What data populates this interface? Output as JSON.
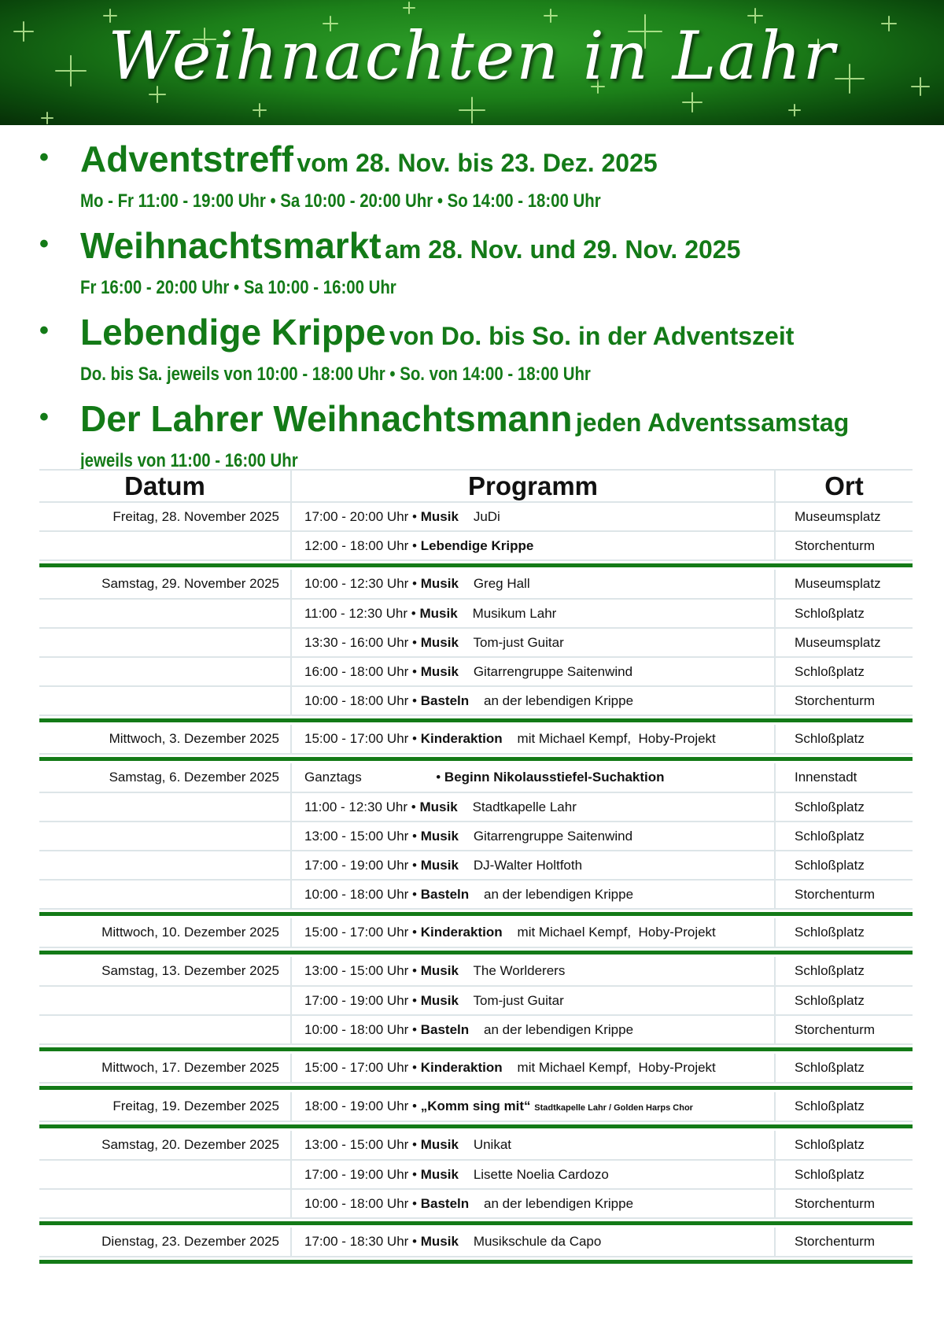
{
  "banner": {
    "title": "Weihnachten in Lahr"
  },
  "colors": {
    "green": "#137a17",
    "banner": "#1c7f19"
  },
  "events": [
    {
      "name": "Adventstreff",
      "dates": "vom 28. Nov. bis 23. Dez. 2025",
      "times": "Mo - Fr 11:00 - 19:00 Uhr • Sa 10:00 - 20:00 Uhr • So 14:00 - 18:00 Uhr"
    },
    {
      "name": "Weihnachtsmarkt",
      "dates": "am 28. Nov. und 29. Nov. 2025",
      "times": "Fr 16:00 - 20:00 Uhr • Sa 10:00 - 16:00 Uhr"
    },
    {
      "name": "Lebendige Krippe",
      "dates": "von Do. bis So. in der Adventszeit",
      "times": "Do. bis Sa. jeweils von 10:00 - 18:00 Uhr • So. von 14:00 - 18:00 Uhr"
    },
    {
      "name": "Der Lahrer Weihnachtsmann",
      "dates": "jeden Adventssamstag",
      "times": "jeweils von 11:00 - 16:00 Uhr"
    }
  ],
  "table": {
    "headers": [
      "Datum",
      "Programm",
      "Ort"
    ],
    "groups": [
      {
        "date": "Freitag, 28. November 2025",
        "rows": [
          {
            "time": "17:00 - 20:00 Uhr •",
            "type": "Musik",
            "detail": "JuDi",
            "place": "Museumsplatz"
          },
          {
            "time": "12:00 - 18:00 Uhr •",
            "type": "Lebendige Krippe",
            "detail": "",
            "place": "Storchenturm"
          }
        ]
      },
      {
        "date": "Samstag, 29. November 2025",
        "rows": [
          {
            "time": "10:00 - 12:30 Uhr •",
            "type": "Musik",
            "detail": "Greg Hall",
            "place": "Museumsplatz"
          },
          {
            "time": "11:00 - 12:30 Uhr •",
            "type": "Musik",
            "detail": "Musikum Lahr",
            "place": "Schloßplatz"
          },
          {
            "time": "13:30 - 16:00 Uhr •",
            "type": "Musik",
            "detail": "Tom-just Guitar",
            "place": "Museumsplatz"
          },
          {
            "time": "16:00 - 18:00 Uhr •",
            "type": "Musik",
            "detail": "Gitarrengruppe Saitenwind",
            "place": "Schloßplatz"
          },
          {
            "time": "10:00 - 18:00 Uhr •",
            "type": "Basteln",
            "detail": "an der lebendigen Krippe",
            "place": "Storchenturm"
          }
        ]
      },
      {
        "date": "Mittwoch, 3. Dezember 2025",
        "rows": [
          {
            "time": "15:00 - 17:00 Uhr •",
            "type": "Kinderaktion",
            "detail": "mit Michael Kempf,  Hoby-Projekt",
            "place": "Schloßplatz"
          }
        ]
      },
      {
        "date": "Samstag, 6. Dezember 2025",
        "rows": [
          {
            "time": "Ganztags                    •",
            "type": "Beginn Nikolausstiefel-Suchaktion",
            "detail": "",
            "place": "Innenstadt"
          },
          {
            "time": "11:00 - 12:30 Uhr •",
            "type": "Musik",
            "detail": "Stadtkapelle Lahr",
            "place": "Schloßplatz"
          },
          {
            "time": "13:00 - 15:00 Uhr •",
            "type": "Musik",
            "detail": "Gitarrengruppe Saitenwind",
            "place": "Schloßplatz"
          },
          {
            "time": "17:00 - 19:00 Uhr •",
            "type": "Musik",
            "detail": "DJ-Walter Holtfoth",
            "place": "Schloßplatz"
          },
          {
            "time": "10:00 - 18:00 Uhr •",
            "type": "Basteln",
            "detail": "an der lebendigen Krippe",
            "place": "Storchenturm"
          }
        ]
      },
      {
        "date": "Mittwoch, 10. Dezember 2025",
        "rows": [
          {
            "time": "15:00 - 17:00 Uhr •",
            "type": "Kinderaktion",
            "detail": "mit Michael Kempf,  Hoby-Projekt",
            "place": "Schloßplatz"
          }
        ]
      },
      {
        "date": "Samstag, 13. Dezember 2025",
        "rows": [
          {
            "time": "13:00 - 15:00 Uhr •",
            "type": "Musik",
            "detail": "The Worlderers",
            "place": "Schloßplatz"
          },
          {
            "time": "17:00 - 19:00 Uhr •",
            "type": "Musik",
            "detail": "Tom-just Guitar",
            "place": "Schloßplatz"
          },
          {
            "time": "10:00 - 18:00 Uhr •",
            "type": "Basteln",
            "detail": "an der lebendigen Krippe",
            "place": "Storchenturm"
          }
        ]
      },
      {
        "date": "Mittwoch, 17. Dezember 2025",
        "rows": [
          {
            "time": "15:00 - 17:00 Uhr •",
            "type": "Kinderaktion",
            "detail": "mit Michael Kempf,  Hoby-Projekt",
            "place": "Schloßplatz"
          }
        ]
      },
      {
        "date": "Freitag, 19. Dezember 2025",
        "rows": [
          {
            "time": "18:00 - 19:00 Uhr •",
            "type": "„Komm sing mit“",
            "detail": "",
            "small": "Stadtkapelle Lahr / Golden Harps Chor",
            "place": "Schloßplatz"
          }
        ]
      },
      {
        "date": "Samstag, 20. Dezember 2025",
        "rows": [
          {
            "time": "13:00 - 15:00 Uhr •",
            "type": "Musik",
            "detail": "Unikat",
            "place": "Schloßplatz"
          },
          {
            "time": "17:00 - 19:00 Uhr •",
            "type": "Musik",
            "detail": "Lisette Noelia Cardozo",
            "place": "Schloßplatz"
          },
          {
            "time": "10:00 - 18:00 Uhr •",
            "type": "Basteln",
            "detail": "an der lebendigen Krippe",
            "place": "Storchenturm"
          }
        ]
      },
      {
        "date": "Dienstag, 23. Dezember 2025",
        "rows": [
          {
            "time": "17:00 - 18:30 Uhr •",
            "type": "Musik",
            "detail": "Musikschule da Capo",
            "place": "Storchenturm"
          }
        ]
      }
    ]
  }
}
